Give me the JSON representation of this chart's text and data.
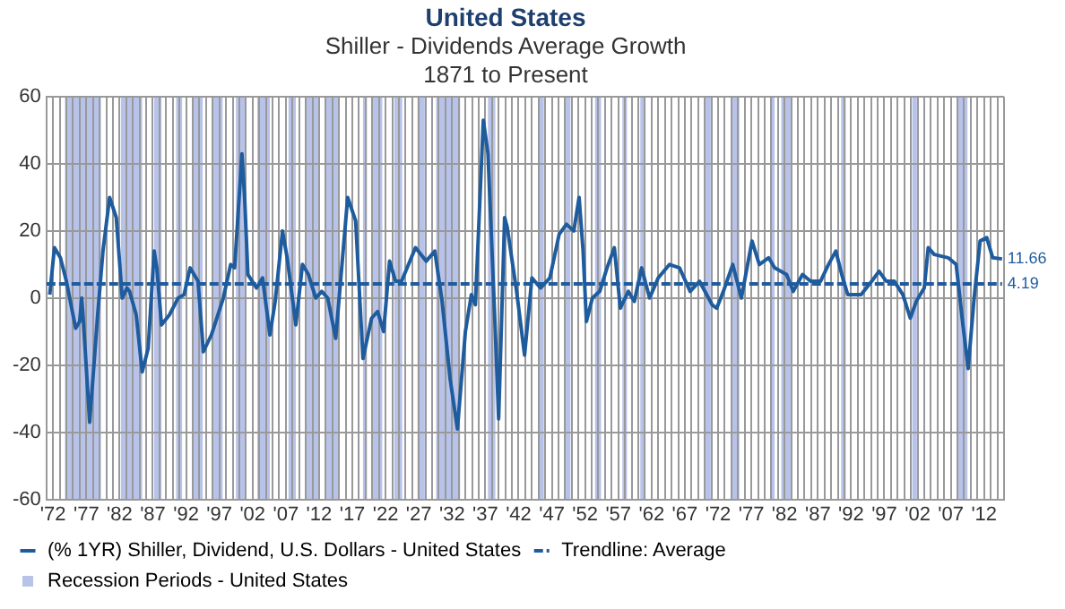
{
  "chart_data": {
    "type": "line",
    "title": "United States",
    "subtitle": "Shiller - Dividends Average Growth\n1871 to Present",
    "xlim": [
      1871,
      2015
    ],
    "ylim": [
      -60,
      60
    ],
    "yticks": [
      -60,
      -40,
      -20,
      0,
      20,
      40,
      60
    ],
    "xticks": [
      {
        "value": 1871,
        "label": null
      },
      {
        "value": 1872,
        "label": "'72"
      },
      {
        "value": 1873,
        "label": null
      },
      {
        "value": 1874,
        "label": null
      },
      {
        "value": 1875,
        "label": null
      },
      {
        "value": 1876,
        "label": null
      },
      {
        "value": 1877,
        "label": "'77"
      },
      {
        "value": 1878,
        "label": null
      },
      {
        "value": 1879,
        "label": null
      },
      {
        "value": 1880,
        "label": null
      },
      {
        "value": 1881,
        "label": null
      },
      {
        "value": 1882,
        "label": "'82"
      },
      {
        "value": 1883,
        "label": null
      },
      {
        "value": 1884,
        "label": null
      },
      {
        "value": 1885,
        "label": null
      },
      {
        "value": 1886,
        "label": null
      },
      {
        "value": 1887,
        "label": "'87"
      },
      {
        "value": 1888,
        "label": null
      },
      {
        "value": 1889,
        "label": null
      },
      {
        "value": 1890,
        "label": null
      },
      {
        "value": 1891,
        "label": null
      },
      {
        "value": 1892,
        "label": "'92"
      },
      {
        "value": 1893,
        "label": null
      },
      {
        "value": 1894,
        "label": null
      },
      {
        "value": 1895,
        "label": null
      },
      {
        "value": 1896,
        "label": null
      },
      {
        "value": 1897,
        "label": "'97"
      },
      {
        "value": 1898,
        "label": null
      },
      {
        "value": 1899,
        "label": null
      },
      {
        "value": 1900,
        "label": null
      },
      {
        "value": 1901,
        "label": null
      },
      {
        "value": 1902,
        "label": "'02"
      },
      {
        "value": 1903,
        "label": null
      },
      {
        "value": 1904,
        "label": null
      },
      {
        "value": 1905,
        "label": null
      },
      {
        "value": 1906,
        "label": null
      },
      {
        "value": 1907,
        "label": "'07"
      },
      {
        "value": 1908,
        "label": null
      },
      {
        "value": 1909,
        "label": null
      },
      {
        "value": 1910,
        "label": null
      },
      {
        "value": 1911,
        "label": null
      },
      {
        "value": 1912,
        "label": "'12"
      },
      {
        "value": 1913,
        "label": null
      },
      {
        "value": 1914,
        "label": null
      },
      {
        "value": 1915,
        "label": null
      },
      {
        "value": 1916,
        "label": null
      },
      {
        "value": 1917,
        "label": "'17"
      },
      {
        "value": 1918,
        "label": null
      },
      {
        "value": 1919,
        "label": null
      },
      {
        "value": 1920,
        "label": null
      },
      {
        "value": 1921,
        "label": null
      },
      {
        "value": 1922,
        "label": "'22"
      },
      {
        "value": 1923,
        "label": null
      },
      {
        "value": 1924,
        "label": null
      },
      {
        "value": 1925,
        "label": null
      },
      {
        "value": 1926,
        "label": null
      },
      {
        "value": 1927,
        "label": "'27"
      },
      {
        "value": 1928,
        "label": null
      },
      {
        "value": 1929,
        "label": null
      },
      {
        "value": 1930,
        "label": null
      },
      {
        "value": 1931,
        "label": null
      },
      {
        "value": 1932,
        "label": "'32"
      },
      {
        "value": 1933,
        "label": null
      },
      {
        "value": 1934,
        "label": null
      },
      {
        "value": 1935,
        "label": null
      },
      {
        "value": 1936,
        "label": null
      },
      {
        "value": 1937,
        "label": "'37"
      },
      {
        "value": 1938,
        "label": null
      },
      {
        "value": 1939,
        "label": null
      },
      {
        "value": 1940,
        "label": null
      },
      {
        "value": 1941,
        "label": null
      },
      {
        "value": 1942,
        "label": "'42"
      },
      {
        "value": 1943,
        "label": null
      },
      {
        "value": 1944,
        "label": null
      },
      {
        "value": 1945,
        "label": null
      },
      {
        "value": 1946,
        "label": null
      },
      {
        "value": 1947,
        "label": "'47"
      },
      {
        "value": 1948,
        "label": null
      },
      {
        "value": 1949,
        "label": null
      },
      {
        "value": 1950,
        "label": null
      },
      {
        "value": 1951,
        "label": null
      },
      {
        "value": 1952,
        "label": "'52"
      },
      {
        "value": 1953,
        "label": null
      },
      {
        "value": 1954,
        "label": null
      },
      {
        "value": 1955,
        "label": null
      },
      {
        "value": 1956,
        "label": null
      },
      {
        "value": 1957,
        "label": "'57"
      },
      {
        "value": 1958,
        "label": null
      },
      {
        "value": 1959,
        "label": null
      },
      {
        "value": 1960,
        "label": null
      },
      {
        "value": 1961,
        "label": null
      },
      {
        "value": 1962,
        "label": "'62"
      },
      {
        "value": 1963,
        "label": null
      },
      {
        "value": 1964,
        "label": null
      },
      {
        "value": 1965,
        "label": null
      },
      {
        "value": 1966,
        "label": null
      },
      {
        "value": 1967,
        "label": "'67"
      },
      {
        "value": 1968,
        "label": null
      },
      {
        "value": 1969,
        "label": null
      },
      {
        "value": 1970,
        "label": null
      },
      {
        "value": 1971,
        "label": null
      },
      {
        "value": 1972,
        "label": "'72"
      },
      {
        "value": 1973,
        "label": null
      },
      {
        "value": 1974,
        "label": null
      },
      {
        "value": 1975,
        "label": null
      },
      {
        "value": 1976,
        "label": null
      },
      {
        "value": 1977,
        "label": "'77"
      },
      {
        "value": 1978,
        "label": null
      },
      {
        "value": 1979,
        "label": null
      },
      {
        "value": 1980,
        "label": null
      },
      {
        "value": 1981,
        "label": null
      },
      {
        "value": 1982,
        "label": "'82"
      },
      {
        "value": 1983,
        "label": null
      },
      {
        "value": 1984,
        "label": null
      },
      {
        "value": 1985,
        "label": null
      },
      {
        "value": 1986,
        "label": null
      },
      {
        "value": 1987,
        "label": "'87"
      },
      {
        "value": 1988,
        "label": null
      },
      {
        "value": 1989,
        "label": null
      },
      {
        "value": 1990,
        "label": null
      },
      {
        "value": 1991,
        "label": null
      },
      {
        "value": 1992,
        "label": "'92"
      },
      {
        "value": 1993,
        "label": null
      },
      {
        "value": 1994,
        "label": null
      },
      {
        "value": 1995,
        "label": null
      },
      {
        "value": 1996,
        "label": null
      },
      {
        "value": 1997,
        "label": "'97"
      },
      {
        "value": 1998,
        "label": null
      },
      {
        "value": 1999,
        "label": null
      },
      {
        "value": 2000,
        "label": null
      },
      {
        "value": 2001,
        "label": null
      },
      {
        "value": 2002,
        "label": "'02"
      },
      {
        "value": 2003,
        "label": null
      },
      {
        "value": 2004,
        "label": null
      },
      {
        "value": 2005,
        "label": null
      },
      {
        "value": 2006,
        "label": null
      },
      {
        "value": 2007,
        "label": "'07"
      },
      {
        "value": 2008,
        "label": null
      },
      {
        "value": 2009,
        "label": null
      },
      {
        "value": 2010,
        "label": null
      },
      {
        "value": 2011,
        "label": null
      },
      {
        "value": 2012,
        "label": "'12"
      },
      {
        "value": 2013,
        "label": null
      },
      {
        "value": 2014,
        "label": null
      },
      {
        "value": 2015,
        "label": null
      }
    ],
    "grid": true,
    "legend": "bottom",
    "series": [
      {
        "name": "(% 1YR) Shiller, Dividend, U.S. Dollars - United States",
        "color": "#1f5c9e",
        "line_style": "solid",
        "x": [
          1871.5,
          1872.2,
          1873.1,
          1874,
          1875.4,
          1876,
          1876.3,
          1876.5,
          1877.5,
          1878.1,
          1878.7,
          1879.5,
          1880.5,
          1881.5,
          1882.4,
          1883.1,
          1883.5,
          1884.5,
          1885.4,
          1886.3,
          1887.2,
          1887.6,
          1888.3,
          1889.5,
          1890.8,
          1891.7,
          1892.6,
          1893.8,
          1894.6,
          1895.8,
          1897.6,
          1898.7,
          1899.3,
          1900.4,
          1900.8,
          1901.3,
          1902.6,
          1903.5,
          1904.6,
          1905.4,
          1906.5,
          1907.2,
          1908.5,
          1909.5,
          1910.4,
          1911.5,
          1912.4,
          1913.3,
          1914.5,
          1916.3,
          1917.5,
          1918.6,
          1919.9,
          1920.8,
          1921.7,
          1922.6,
          1923.5,
          1924.4,
          1926.5,
          1928.1,
          1929.4,
          1930.5,
          1931.7,
          1932.8,
          1934,
          1934.9,
          1935.5,
          1936.7,
          1937.4,
          1938.5,
          1939,
          1939.9,
          1940.3,
          1941.7,
          1942.9,
          1944,
          1945.3,
          1946.7,
          1948.1,
          1949.2,
          1950.3,
          1951.1,
          1951.7,
          1952.2,
          1953.1,
          1954.2,
          1955.3,
          1956.4,
          1957.3,
          1958.5,
          1959.4,
          1960.5,
          1961.7,
          1963,
          1964.7,
          1966.2,
          1967.8,
          1969.2,
          1971.1,
          1971.8,
          1972.8,
          1974.2,
          1975.5,
          1977.1,
          1978.2,
          1979.6,
          1980.5,
          1982.3,
          1983.3,
          1984.7,
          1985.9,
          1987.4,
          1988.6,
          1989.7,
          1990.6,
          1991.5,
          1993.5,
          1995.1,
          1996.2,
          1997.3,
          1998.5,
          1999.8,
          2000.9,
          2001.8,
          2003,
          2003.6,
          2004.5,
          2006.6,
          2007.8,
          2008.7,
          2009.6,
          2010.5,
          2011.4,
          2012.4,
          2013.3,
          2014.7
        ],
        "values": [
          1,
          15,
          12,
          5,
          -9,
          -7,
          0,
          -5,
          -37,
          -21,
          -5,
          14,
          30,
          24,
          0,
          3,
          2,
          -5,
          -22,
          -15,
          14,
          9,
          -8,
          -5,
          0,
          1,
          9,
          5,
          -16,
          -11,
          0,
          10,
          9,
          43,
          30,
          7,
          3,
          6,
          -11,
          -1,
          20,
          12,
          -8,
          10,
          7,
          0,
          2,
          0,
          -12,
          30,
          23,
          -18,
          -6,
          -4,
          -10,
          11,
          5,
          5,
          15,
          11,
          14,
          -1,
          -24,
          -39,
          -10,
          1,
          -2,
          53,
          43,
          -10,
          -36,
          24,
          21,
          2,
          -17,
          6,
          3,
          6,
          19,
          22,
          20,
          30,
          14,
          -7,
          0,
          2,
          9,
          15,
          -3,
          2,
          -1,
          9,
          0,
          6,
          10,
          9,
          2,
          5,
          -2,
          -3,
          2,
          10,
          0,
          17,
          10,
          12,
          9,
          7,
          2,
          7,
          5,
          5,
          10,
          14,
          7,
          1,
          1,
          5,
          8,
          5,
          5,
          1,
          -6,
          -1,
          3,
          15,
          13,
          12,
          10,
          -6,
          -21,
          0,
          17,
          18,
          12,
          11.66
        ],
        "value_labels": [
          null,
          null,
          null,
          null,
          null,
          null,
          null,
          null,
          null,
          null,
          null,
          null,
          null,
          null,
          null,
          null,
          null,
          null,
          null,
          null,
          null,
          null,
          null,
          null,
          null,
          null,
          null,
          null,
          null,
          null,
          null,
          null,
          null,
          null,
          null,
          null,
          null,
          null,
          null,
          null,
          null,
          null,
          null,
          null,
          null,
          null,
          null,
          null,
          null,
          null,
          null,
          null,
          null,
          null,
          null,
          null,
          null,
          null,
          null,
          null,
          null,
          null,
          null,
          null,
          null,
          null,
          null,
          null,
          null,
          null,
          null,
          null,
          null,
          null,
          null,
          null,
          null,
          null,
          null,
          null,
          null,
          null,
          null,
          null,
          null,
          null,
          null,
          null,
          null,
          null,
          null,
          null,
          null,
          null,
          null,
          null,
          null,
          null,
          null,
          null,
          null,
          null,
          null,
          null,
          null,
          null,
          null,
          null,
          null,
          null,
          null,
          null,
          null,
          null,
          null,
          null,
          null,
          null,
          null,
          null,
          null,
          null,
          null,
          null,
          null,
          null,
          null,
          null,
          null,
          null,
          null,
          null,
          null,
          null,
          null,
          "11.66"
        ]
      },
      {
        "name": "Trendline: Average",
        "color": "#1f5c9e",
        "line_style": "dashed",
        "x": [
          1871,
          2014.7
        ],
        "values": [
          4.19,
          4.19
        ],
        "value_labels": [
          null,
          "4.19"
        ]
      }
    ],
    "bands": [
      {
        "axis": "x",
        "from": 1873.8,
        "to": 1879.2,
        "label": "Recession Periods - United States",
        "color": "#b8c3ea"
      },
      {
        "axis": "x",
        "from": 1882.2,
        "to": 1885.4,
        "color": "#b8c3ea"
      },
      {
        "axis": "x",
        "from": 1887.2,
        "to": 1888.3,
        "color": "#b8c3ea"
      },
      {
        "axis": "x",
        "from": 1890.5,
        "to": 1891.4,
        "color": "#b8c3ea"
      },
      {
        "axis": "x",
        "from": 1893,
        "to": 1894.5,
        "color": "#b8c3ea"
      },
      {
        "axis": "x",
        "from": 1895.9,
        "to": 1897.5,
        "color": "#b8c3ea"
      },
      {
        "axis": "x",
        "from": 1899.5,
        "to": 1900.9,
        "color": "#b8c3ea"
      },
      {
        "axis": "x",
        "from": 1902.7,
        "to": 1904.6,
        "color": "#b8c3ea"
      },
      {
        "axis": "x",
        "from": 1907.4,
        "to": 1908.5,
        "color": "#b8c3ea"
      },
      {
        "axis": "x",
        "from": 1910,
        "to": 1912,
        "color": "#b8c3ea"
      },
      {
        "axis": "x",
        "from": 1913,
        "to": 1914.9,
        "color": "#b8c3ea"
      },
      {
        "axis": "x",
        "from": 1918.6,
        "to": 1919.2,
        "color": "#b8c3ea"
      },
      {
        "axis": "x",
        "from": 1920,
        "to": 1921.5,
        "color": "#b8c3ea"
      },
      {
        "axis": "x",
        "from": 1923.3,
        "to": 1924.5,
        "color": "#b8c3ea"
      },
      {
        "axis": "x",
        "from": 1926.8,
        "to": 1927.9,
        "color": "#b8c3ea"
      },
      {
        "axis": "x",
        "from": 1929.6,
        "to": 1933.2,
        "color": "#b8c3ea"
      },
      {
        "axis": "x",
        "from": 1937.4,
        "to": 1938.5,
        "color": "#b8c3ea"
      },
      {
        "axis": "x",
        "from": 1945.1,
        "to": 1945.8,
        "color": "#b8c3ea"
      },
      {
        "axis": "x",
        "from": 1948.9,
        "to": 1949.8,
        "color": "#b8c3ea"
      },
      {
        "axis": "x",
        "from": 1953.5,
        "to": 1954.4,
        "color": "#b8c3ea"
      },
      {
        "axis": "x",
        "from": 1957.6,
        "to": 1958.3,
        "color": "#b8c3ea"
      },
      {
        "axis": "x",
        "from": 1960.3,
        "to": 1961.1,
        "color": "#b8c3ea"
      },
      {
        "axis": "x",
        "from": 1969.9,
        "to": 1970.9,
        "color": "#b8c3ea"
      },
      {
        "axis": "x",
        "from": 1973.9,
        "to": 1975.2,
        "color": "#b8c3ea"
      },
      {
        "axis": "x",
        "from": 1980,
        "to": 1980.5,
        "color": "#b8c3ea"
      },
      {
        "axis": "x",
        "from": 1981.5,
        "to": 1982.9,
        "color": "#b8c3ea"
      },
      {
        "axis": "x",
        "from": 1990.5,
        "to": 1991.2,
        "color": "#b8c3ea"
      },
      {
        "axis": "x",
        "from": 2001.2,
        "to": 2001.9,
        "color": "#b8c3ea"
      },
      {
        "axis": "x",
        "from": 2007.9,
        "to": 2009.5,
        "color": "#b8c3ea"
      }
    ]
  }
}
